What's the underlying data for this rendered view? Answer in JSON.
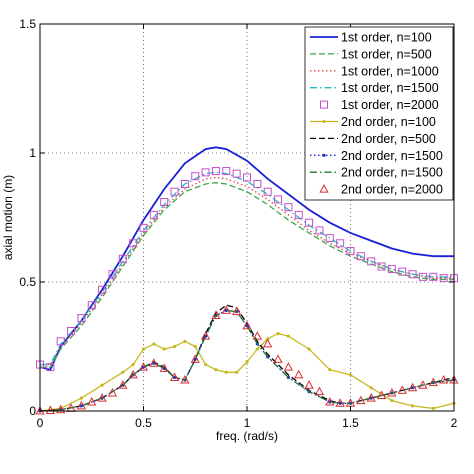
{
  "chart_data": {
    "type": "line",
    "xlabel": "freq. (rad/s)",
    "ylabel": "axial motion (m)",
    "xlim": [
      0,
      2
    ],
    "ylim": [
      0,
      1.5
    ],
    "xticks": [
      0,
      0.5,
      1,
      1.5,
      2
    ],
    "yticks": [
      0,
      0.5,
      1,
      1.5
    ],
    "xtick_labels": [
      "0",
      "0.5",
      "1",
      "1.5",
      "2"
    ],
    "ytick_labels": [
      "0",
      "0.5",
      "1",
      "1.5"
    ],
    "grid": true,
    "legend_position": "top-right",
    "series": [
      {
        "name": "1st order, n=100",
        "color": "#1a1fd6",
        "style": "solid",
        "marker": "none",
        "x": [
          0,
          0.05,
          0.1,
          0.2,
          0.3,
          0.4,
          0.5,
          0.6,
          0.7,
          0.8,
          0.85,
          0.9,
          1.0,
          1.1,
          1.2,
          1.3,
          1.4,
          1.5,
          1.6,
          1.7,
          1.8,
          1.9,
          2.0
        ],
        "y": [
          0.17,
          0.16,
          0.25,
          0.35,
          0.47,
          0.6,
          0.74,
          0.86,
          0.96,
          1.015,
          1.022,
          1.015,
          0.97,
          0.9,
          0.84,
          0.78,
          0.73,
          0.69,
          0.66,
          0.63,
          0.61,
          0.6,
          0.6
        ]
      },
      {
        "name": "1st order, n=500",
        "color": "#3aa84a",
        "style": "dashed",
        "marker": "none",
        "x": [
          0,
          0.05,
          0.1,
          0.2,
          0.3,
          0.4,
          0.5,
          0.6,
          0.7,
          0.8,
          0.85,
          0.9,
          1.0,
          1.1,
          1.2,
          1.3,
          1.4,
          1.5,
          1.6,
          1.7,
          1.8,
          1.9,
          2.0
        ],
        "y": [
          0.17,
          0.17,
          0.24,
          0.33,
          0.44,
          0.56,
          0.68,
          0.78,
          0.85,
          0.88,
          0.885,
          0.88,
          0.85,
          0.8,
          0.74,
          0.69,
          0.64,
          0.6,
          0.57,
          0.54,
          0.52,
          0.51,
          0.51
        ]
      },
      {
        "name": "1st order, n=1000",
        "color": "#e0464a",
        "style": "dotted",
        "marker": "none",
        "x": [
          0,
          0.05,
          0.1,
          0.2,
          0.3,
          0.4,
          0.5,
          0.6,
          0.7,
          0.8,
          0.85,
          0.9,
          1.0,
          1.1,
          1.2,
          1.3,
          1.4,
          1.5,
          1.6,
          1.7,
          1.8,
          1.9,
          2.0
        ],
        "y": [
          0.18,
          0.18,
          0.25,
          0.34,
          0.45,
          0.57,
          0.69,
          0.79,
          0.86,
          0.9,
          0.905,
          0.9,
          0.87,
          0.82,
          0.76,
          0.7,
          0.65,
          0.61,
          0.58,
          0.55,
          0.53,
          0.515,
          0.515
        ]
      },
      {
        "name": "1st order, n=1500",
        "color": "#23b8c8",
        "style": "dashdot",
        "marker": "none",
        "x": [
          0,
          0.05,
          0.1,
          0.2,
          0.3,
          0.4,
          0.5,
          0.6,
          0.7,
          0.8,
          0.85,
          0.9,
          1.0,
          1.1,
          1.2,
          1.3,
          1.4,
          1.5,
          1.6,
          1.7,
          1.8,
          1.9,
          2.0
        ],
        "y": [
          0.18,
          0.18,
          0.26,
          0.35,
          0.46,
          0.58,
          0.7,
          0.8,
          0.88,
          0.92,
          0.925,
          0.92,
          0.89,
          0.84,
          0.78,
          0.72,
          0.67,
          0.62,
          0.58,
          0.55,
          0.53,
          0.52,
          0.52
        ]
      },
      {
        "name": "1st order, n=2000",
        "color": "#c64fc8",
        "style": "none",
        "marker": "square",
        "x": [
          0,
          0.05,
          0.1,
          0.15,
          0.2,
          0.25,
          0.3,
          0.35,
          0.4,
          0.45,
          0.5,
          0.55,
          0.6,
          0.65,
          0.7,
          0.75,
          0.8,
          0.85,
          0.9,
          0.95,
          1.0,
          1.05,
          1.1,
          1.15,
          1.2,
          1.25,
          1.3,
          1.35,
          1.4,
          1.45,
          1.5,
          1.55,
          1.6,
          1.65,
          1.7,
          1.75,
          1.8,
          1.85,
          1.9,
          1.95,
          2.0
        ],
        "y": [
          0.18,
          0.17,
          0.27,
          0.31,
          0.36,
          0.41,
          0.47,
          0.53,
          0.59,
          0.65,
          0.71,
          0.76,
          0.81,
          0.85,
          0.88,
          0.91,
          0.925,
          0.93,
          0.93,
          0.92,
          0.905,
          0.88,
          0.85,
          0.82,
          0.79,
          0.76,
          0.73,
          0.7,
          0.67,
          0.65,
          0.62,
          0.6,
          0.58,
          0.56,
          0.55,
          0.54,
          0.53,
          0.52,
          0.52,
          0.515,
          0.515
        ]
      },
      {
        "name": "2nd order, n=100",
        "color": "#c8b820",
        "style": "solid",
        "marker": "dot",
        "x": [
          0,
          0.1,
          0.2,
          0.3,
          0.4,
          0.45,
          0.5,
          0.55,
          0.6,
          0.65,
          0.7,
          0.75,
          0.8,
          0.85,
          0.9,
          0.95,
          1.0,
          1.05,
          1.1,
          1.15,
          1.2,
          1.3,
          1.4,
          1.5,
          1.6,
          1.7,
          1.8,
          1.9,
          2.0
        ],
        "y": [
          0,
          0.01,
          0.05,
          0.1,
          0.15,
          0.18,
          0.24,
          0.26,
          0.24,
          0.25,
          0.27,
          0.25,
          0.18,
          0.16,
          0.15,
          0.15,
          0.19,
          0.24,
          0.28,
          0.3,
          0.29,
          0.24,
          0.16,
          0.14,
          0.09,
          0.04,
          0.02,
          0.01,
          0.03
        ]
      },
      {
        "name": "2nd order, n=500",
        "color": "#000000",
        "style": "dashed",
        "marker": "none",
        "x": [
          0,
          0.1,
          0.2,
          0.3,
          0.4,
          0.45,
          0.5,
          0.55,
          0.6,
          0.65,
          0.7,
          0.75,
          0.8,
          0.85,
          0.9,
          0.95,
          1.0,
          1.05,
          1.1,
          1.2,
          1.3,
          1.4,
          1.45,
          1.5,
          1.6,
          1.7,
          1.8,
          1.9,
          2.0
        ],
        "y": [
          0,
          0.005,
          0.02,
          0.05,
          0.1,
          0.14,
          0.17,
          0.19,
          0.17,
          0.13,
          0.12,
          0.2,
          0.3,
          0.38,
          0.41,
          0.4,
          0.34,
          0.27,
          0.22,
          0.14,
          0.08,
          0.04,
          0.03,
          0.03,
          0.05,
          0.07,
          0.09,
          0.11,
          0.13
        ]
      },
      {
        "name": "2nd order, n=1500",
        "color": "#2030c8",
        "style": "dotted",
        "marker": "dot",
        "x": [
          0,
          0.1,
          0.2,
          0.3,
          0.4,
          0.45,
          0.5,
          0.55,
          0.6,
          0.65,
          0.7,
          0.75,
          0.8,
          0.85,
          0.9,
          0.95,
          1.0,
          1.05,
          1.1,
          1.2,
          1.3,
          1.4,
          1.45,
          1.5,
          1.6,
          1.7,
          1.8,
          1.9,
          2.0
        ],
        "y": [
          0,
          0.005,
          0.02,
          0.05,
          0.1,
          0.14,
          0.17,
          0.185,
          0.165,
          0.13,
          0.12,
          0.2,
          0.29,
          0.37,
          0.39,
          0.385,
          0.33,
          0.26,
          0.21,
          0.13,
          0.075,
          0.035,
          0.03,
          0.03,
          0.05,
          0.07,
          0.09,
          0.11,
          0.12
        ]
      },
      {
        "name": "2nd order, n=1500",
        "color": "#1a7a2e",
        "style": "dashdot",
        "marker": "none",
        "x": [
          0,
          0.1,
          0.2,
          0.3,
          0.4,
          0.45,
          0.5,
          0.55,
          0.6,
          0.65,
          0.7,
          0.75,
          0.8,
          0.85,
          0.9,
          0.95,
          1.0,
          1.05,
          1.1,
          1.2,
          1.3,
          1.4,
          1.45,
          1.5,
          1.6,
          1.7,
          1.8,
          1.9,
          2.0
        ],
        "y": [
          0,
          0.005,
          0.02,
          0.05,
          0.1,
          0.14,
          0.17,
          0.185,
          0.165,
          0.13,
          0.12,
          0.2,
          0.29,
          0.37,
          0.39,
          0.385,
          0.33,
          0.26,
          0.21,
          0.13,
          0.075,
          0.035,
          0.03,
          0.03,
          0.05,
          0.07,
          0.09,
          0.11,
          0.12
        ]
      },
      {
        "name": "2nd order, n=2000",
        "color": "#d83030",
        "style": "none",
        "marker": "triangle",
        "x": [
          0,
          0.05,
          0.1,
          0.15,
          0.2,
          0.25,
          0.3,
          0.35,
          0.4,
          0.45,
          0.5,
          0.55,
          0.6,
          0.65,
          0.7,
          0.75,
          0.8,
          0.85,
          0.9,
          0.95,
          1.0,
          1.05,
          1.1,
          1.15,
          1.2,
          1.25,
          1.3,
          1.35,
          1.4,
          1.45,
          1.5,
          1.55,
          1.6,
          1.65,
          1.7,
          1.75,
          1.8,
          1.85,
          1.9,
          1.95,
          2.0
        ],
        "y": [
          0,
          0.002,
          0.005,
          0.01,
          0.02,
          0.035,
          0.05,
          0.07,
          0.1,
          0.14,
          0.17,
          0.185,
          0.165,
          0.13,
          0.12,
          0.2,
          0.29,
          0.37,
          0.39,
          0.385,
          0.33,
          0.29,
          0.26,
          0.2,
          0.17,
          0.14,
          0.1,
          0.075,
          0.035,
          0.03,
          0.03,
          0.04,
          0.05,
          0.06,
          0.07,
          0.08,
          0.09,
          0.1,
          0.11,
          0.12,
          0.12
        ]
      }
    ]
  }
}
